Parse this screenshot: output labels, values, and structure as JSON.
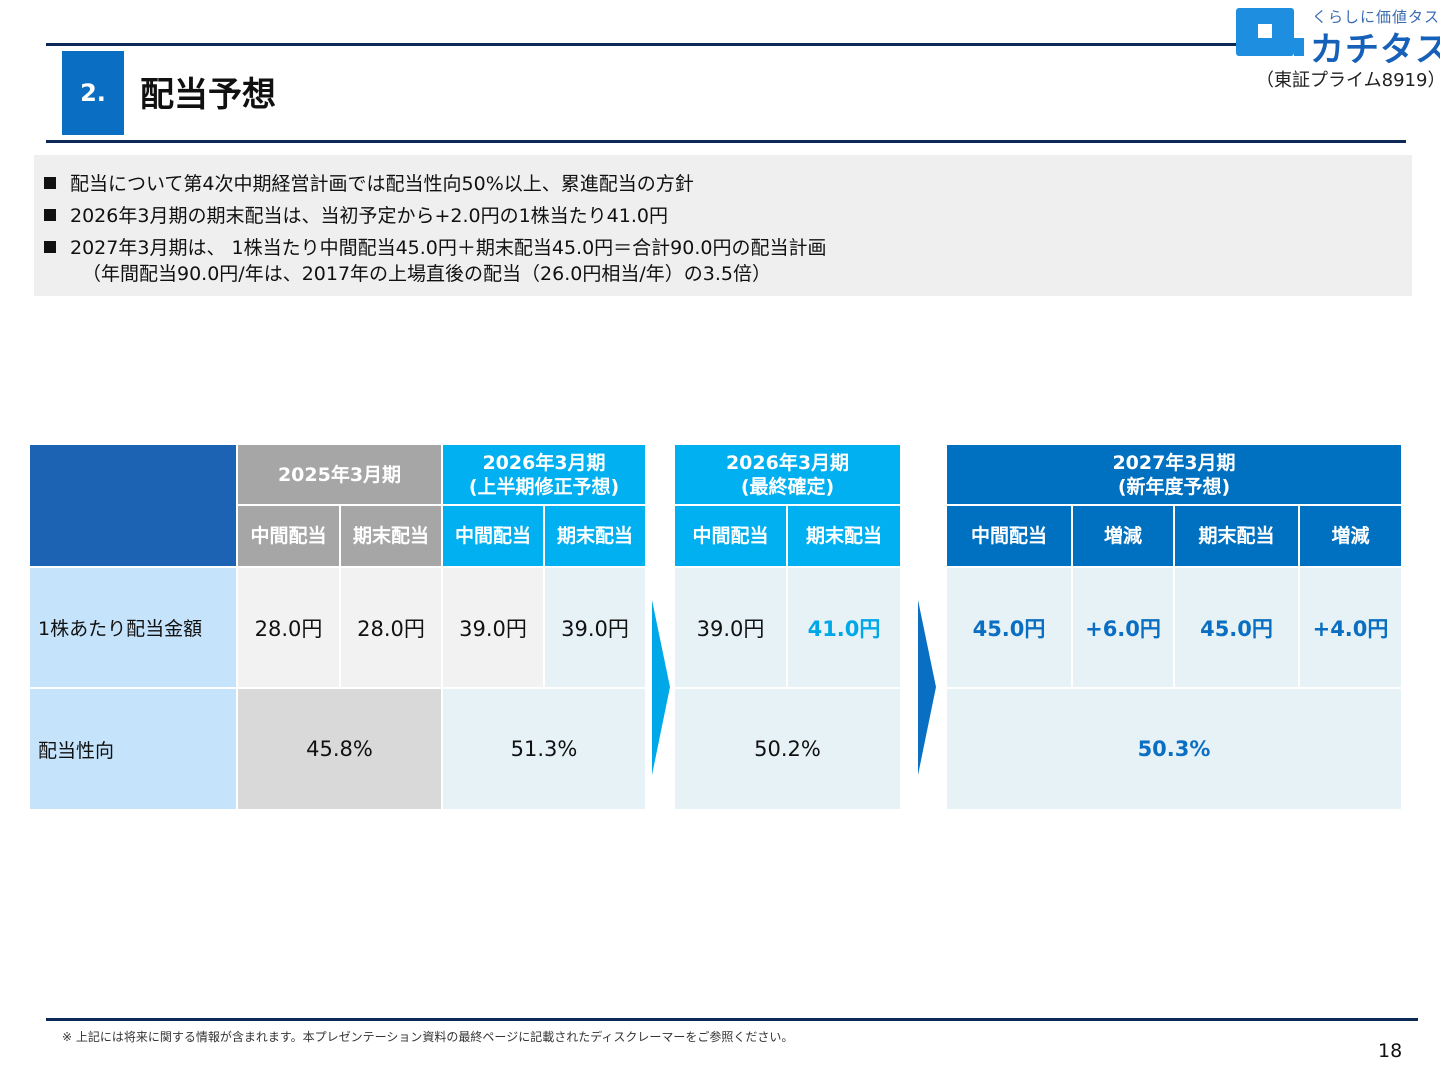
{
  "header": {
    "section_number": "2.",
    "title": "配当予想"
  },
  "logo": {
    "tagline": "くらしに価値タス",
    "name": "カチタス",
    "exchange": "（東証プライム8919）"
  },
  "summary": {
    "items": [
      "配当について第4次中期経営計画では配当性向50%以上、累進配当の方針",
      "2026年3月期の期末配当は、当初予定から+2.0円の1株当たり41.0円",
      "2027年3月期は、 1株当たり中間配当45.0円＋期末配当45.0円＝合計90.0円の配当計画"
    ],
    "continuation": "（年間配当90.0円/年は、2017年の上場直後の配当（26.0円相当/年）の3.5倍）"
  },
  "table": {
    "fy2025": {
      "header": "2025年3月期",
      "interim": "中間配当",
      "final": "期末配当",
      "dps_interim": "28.0円",
      "dps_final": "28.0円",
      "payout": "45.8%"
    },
    "fy2026_rev": {
      "header_line1": "2026年3月期",
      "header_line2": "(上半期修正予想)",
      "interim": "中間配当",
      "final": "期末配当",
      "dps_interim": "39.0円",
      "dps_final": "39.0円",
      "payout": "51.3%"
    },
    "fy2026_final": {
      "header_line1": "2026年3月期",
      "header_line2": "(最終確定)",
      "interim": "中間配当",
      "final": "期末配当",
      "dps_interim": "39.0円",
      "dps_final": "41.0円",
      "payout": "50.2%"
    },
    "fy2027": {
      "header_line1": "2027年3月期",
      "header_line2": "(新年度予想)",
      "interim": "中間配当",
      "change1": "増減",
      "final": "期末配当",
      "change2": "増減",
      "dps_interim": "45.0円",
      "dps_change1": "+6.0円",
      "dps_final": "45.0円",
      "dps_change2": "+4.0円",
      "payout": "50.3%"
    },
    "row_labels": {
      "dps": "1株あたり配当金額",
      "payout": "配当性向"
    }
  },
  "footer": {
    "disclaimer": "※ 上記には将来に関する情報が含まれます。本プレゼンテーション資料の最終ページに記載されたディスクレーマーをご参照ください。",
    "page_number": "18"
  },
  "colors": {
    "navy": "#0d2a57",
    "accent_blue": "#0a6fc2",
    "cyan": "#00b0f0",
    "gray_header": "#a6a6a6"
  }
}
